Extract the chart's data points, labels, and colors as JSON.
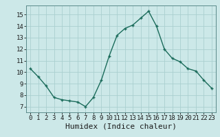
{
  "x": [
    0,
    1,
    2,
    3,
    4,
    5,
    6,
    7,
    8,
    9,
    10,
    11,
    12,
    13,
    14,
    15,
    16,
    17,
    18,
    19,
    20,
    21,
    22,
    23
  ],
  "y": [
    10.3,
    9.6,
    8.8,
    7.8,
    7.6,
    7.5,
    7.4,
    7.0,
    7.8,
    9.3,
    11.4,
    13.2,
    13.8,
    14.1,
    14.7,
    15.3,
    14.0,
    12.0,
    11.2,
    10.9,
    10.3,
    10.1,
    9.3,
    8.6
  ],
  "xlim": [
    -0.5,
    23.5
  ],
  "ylim": [
    6.5,
    15.8
  ],
  "yticks": [
    7,
    8,
    9,
    10,
    11,
    12,
    13,
    14,
    15
  ],
  "xticks": [
    0,
    1,
    2,
    3,
    4,
    5,
    6,
    7,
    8,
    9,
    10,
    11,
    12,
    13,
    14,
    15,
    16,
    17,
    18,
    19,
    20,
    21,
    22,
    23
  ],
  "xlabel": "Humidex (Indice chaleur)",
  "line_color": "#1a6b5a",
  "marker": "+",
  "marker_size": 3.5,
  "marker_color": "#1a6b5a",
  "bg_color": "#cce8e8",
  "grid_color": "#aacfcf",
  "tick_fontsize": 6.5,
  "xlabel_fontsize": 8,
  "linewidth": 1.0,
  "spine_color": "#5a8a8a"
}
